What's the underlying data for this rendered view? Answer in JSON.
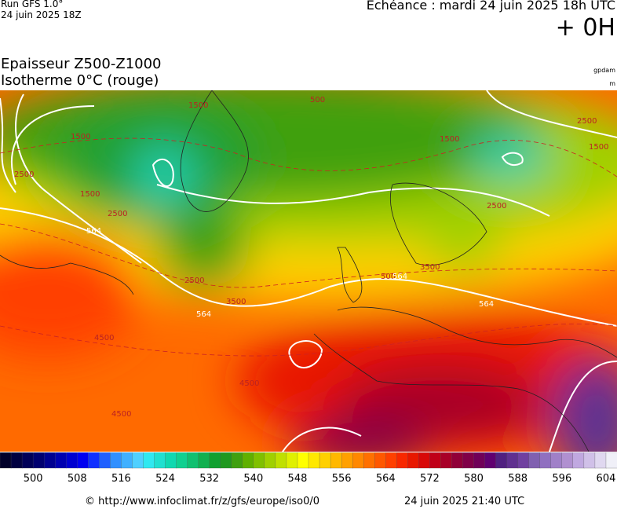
{
  "header": {
    "run": "Run GFS 1.0°",
    "run_date": "24 juin 2025 18Z",
    "forecast": "Echéance : mardi 24 juin 2025 18h UTC",
    "lead": "+ 0H",
    "title": "Epaisseur Z500-Z1000",
    "subtitle": "Isotherme 0°C (rouge)",
    "unit_thickness": "gpdam",
    "unit_iso": "m"
  },
  "map": {
    "contour_labels": [
      "1500",
      "2500",
      "1500",
      "2500",
      "564",
      "1500",
      "2500",
      "3500",
      "564",
      "4500",
      "4500",
      "4500",
      "500",
      "1500",
      "564",
      "2500",
      "3500",
      "500",
      "2500",
      "1500",
      "564"
    ]
  },
  "colorbar": {
    "range": [
      494,
      606
    ],
    "ticks": [
      500,
      508,
      516,
      524,
      532,
      540,
      548,
      556,
      564,
      572,
      580,
      588,
      596,
      604
    ],
    "colors": [
      "#00002a",
      "#000040",
      "#000058",
      "#000070",
      "#000090",
      "#0000b0",
      "#0000d0",
      "#0000f0",
      "#1030ff",
      "#2060ff",
      "#3090ff",
      "#40b0ff",
      "#50d0ff",
      "#30e8f0",
      "#20e0d0",
      "#10d8b0",
      "#10d090",
      "#10c070",
      "#10b050",
      "#10a030",
      "#209820",
      "#40a010",
      "#60b000",
      "#80c000",
      "#a0d000",
      "#c0e000",
      "#e0f000",
      "#ffff00",
      "#ffe800",
      "#ffd000",
      "#ffb800",
      "#ffa000",
      "#ff8800",
      "#ff7000",
      "#ff5800",
      "#ff4000",
      "#f82800",
      "#e81800",
      "#d80808",
      "#c00018",
      "#a80028",
      "#900038",
      "#800048",
      "#700058",
      "#600070",
      "#502080",
      "#603090",
      "#7040a0",
      "#8060b0",
      "#9070c0",
      "#a080c8",
      "#b090d0",
      "#c0a8e0",
      "#d0c0e8",
      "#e0d8f0",
      "#f0f0f8"
    ]
  },
  "footer": {
    "url": "© http://www.infoclimat.fr/z/gfs/europe/iso0/0",
    "generated": "24 juin 2025 21:40 UTC"
  }
}
